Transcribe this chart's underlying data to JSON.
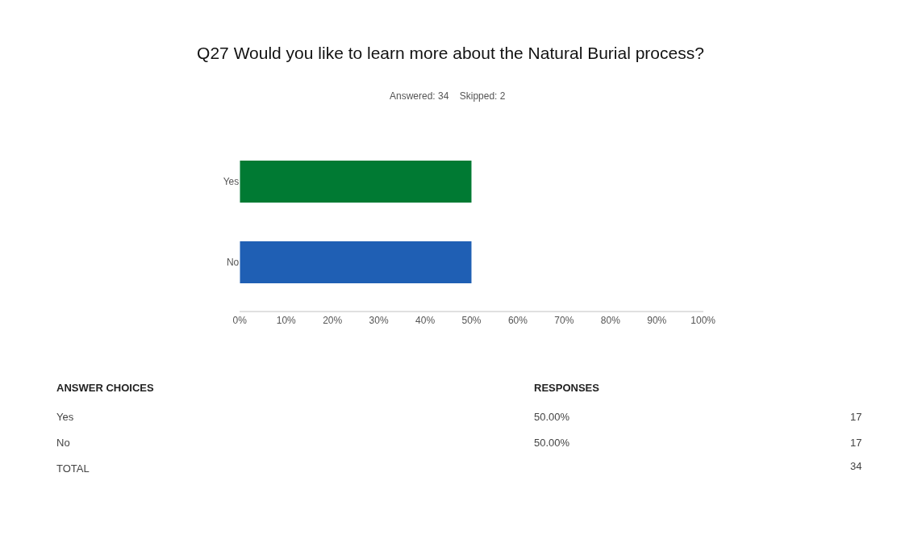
{
  "chart_data": {
    "type": "bar",
    "orientation": "horizontal",
    "title": "Q27 Would you like to learn more about the Natural Burial process?",
    "subtitle": "Answered: 34    Skipped: 2",
    "categories": [
      "Yes",
      "No"
    ],
    "values": [
      50,
      50
    ],
    "colors": [
      "#007a33",
      "#1f5fb4"
    ],
    "xlim": [
      0,
      100
    ],
    "xticks": [
      {
        "value": 0,
        "label": "0%"
      },
      {
        "value": 10,
        "label": "10%"
      },
      {
        "value": 20,
        "label": "20%"
      },
      {
        "value": 30,
        "label": "30%"
      },
      {
        "value": 40,
        "label": "40%"
      },
      {
        "value": 50,
        "label": "50%"
      },
      {
        "value": 60,
        "label": "60%"
      },
      {
        "value": 70,
        "label": "70%"
      },
      {
        "value": 80,
        "label": "80%"
      },
      {
        "value": 90,
        "label": "90%"
      },
      {
        "value": 100,
        "label": "100%"
      }
    ],
    "annotations": [
      "ANSWER CHOICES",
      "RESPONSES",
      "50.00%",
      "17",
      "50.00%",
      "17",
      "TOTAL",
      "34"
    ]
  }
}
